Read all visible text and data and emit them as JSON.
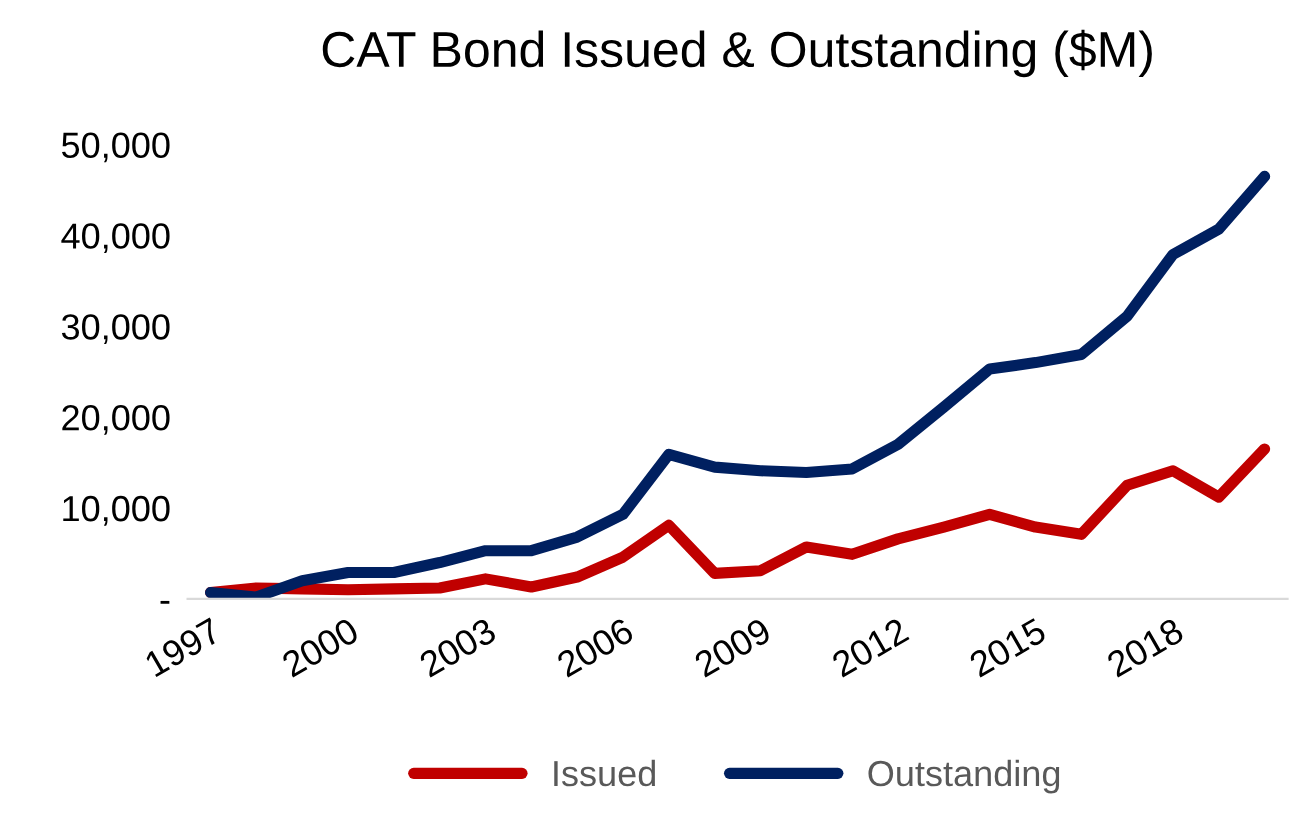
{
  "chart_data": {
    "type": "line",
    "title": "CAT Bond Issued & Outstanding ($M)",
    "x": [
      1997,
      1998,
      1999,
      2000,
      2001,
      2002,
      2003,
      2004,
      2005,
      2006,
      2007,
      2008,
      2009,
      2010,
      2011,
      2012,
      2013,
      2014,
      2015,
      2016,
      2017,
      2018,
      2019,
      2020
    ],
    "series": [
      {
        "name": "Issued",
        "color": "#c00000",
        "values": [
          700,
          1200,
          1100,
          1000,
          1100,
          1200,
          2200,
          1300,
          2400,
          4600,
          8100,
          2800,
          3100,
          5700,
          4900,
          6600,
          7900,
          9300,
          7900,
          7100,
          12500,
          14100,
          11200,
          16500
        ]
      },
      {
        "name": "Outstanding",
        "color": "#002060",
        "values": [
          700,
          200,
          2000,
          2900,
          2900,
          4000,
          5300,
          5300,
          6800,
          9300,
          15900,
          14500,
          14100,
          13900,
          14300,
          17000,
          21100,
          25300,
          26000,
          26900,
          31100,
          37900,
          40700,
          46500
        ]
      }
    ],
    "xlim": [
      1996.5,
      2020.5
    ],
    "xticks": [
      1997,
      2000,
      2003,
      2006,
      2009,
      2012,
      2015,
      2018
    ],
    "ylim": [
      0,
      50000
    ],
    "yticks": [
      {
        "value": 0,
        "label": "-"
      },
      {
        "value": 10000,
        "label": "10,000"
      },
      {
        "value": 20000,
        "label": "20,000"
      },
      {
        "value": 30000,
        "label": "30,000"
      },
      {
        "value": 40000,
        "label": "40,000"
      },
      {
        "value": 50000,
        "label": "50,000"
      }
    ],
    "grid": false,
    "legend": "bottom",
    "marker": "none",
    "line_style": "solid"
  }
}
